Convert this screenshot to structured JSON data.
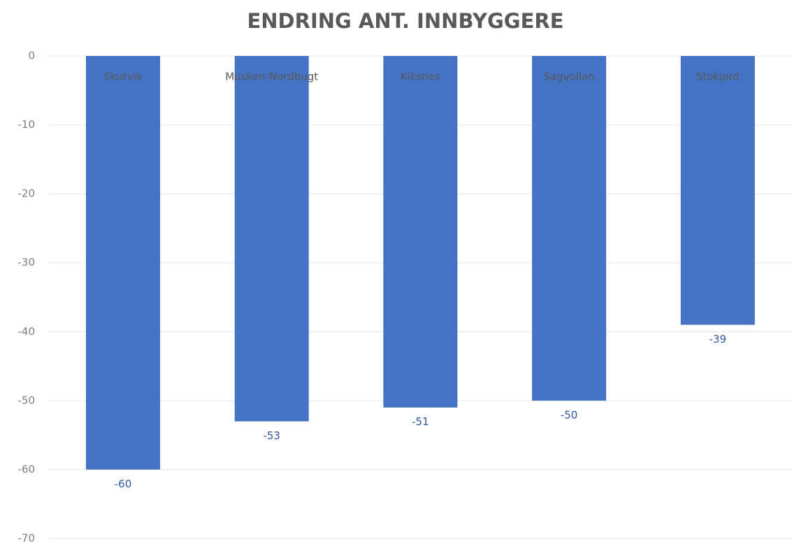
{
  "chart_data": {
    "type": "bar",
    "title": "ENDRING ANT. INNBYGGERE",
    "categories": [
      "Skutvik",
      "Musken-Nordbugt",
      "Kiksnes",
      "Sagvollan",
      "Stokjord"
    ],
    "values": [
      -60,
      -53,
      -51,
      -50,
      -39
    ],
    "color": "#4472c4",
    "ylim": [
      -70,
      0
    ],
    "yticks": [
      0,
      -10,
      -20,
      -30,
      -40,
      -50,
      -60,
      -70
    ],
    "grid": true
  }
}
